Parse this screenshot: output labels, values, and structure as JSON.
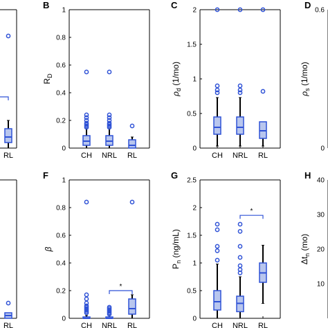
{
  "colors": {
    "box": "#2f52d6",
    "box_fill": "#b8c6ee",
    "whisker": "#000000",
    "outlier": "#2f52d6"
  },
  "chart_data": [
    {
      "type": "box",
      "panel": "A",
      "panel_label": "",
      "ylabel": "",
      "categories": [
        "",
        "RL"
      ],
      "ylim": [
        0,
        1
      ],
      "yticks": [],
      "partial": "left",
      "boxes": [
        null,
        {
          "q1": 0.04,
          "median": 0.08,
          "q3": 0.14,
          "low": 0.0,
          "high": 0.2,
          "outliers": [
            0.81
          ]
        }
      ],
      "significance": {
        "text": "",
        "from": 0,
        "to": 1,
        "y": 0.37
      }
    },
    {
      "type": "box",
      "panel": "B",
      "panel_label": "B",
      "ylabel": "R_D",
      "ylabel_main": "R",
      "ylabel_sub": "D",
      "categories": [
        "CH",
        "NRL",
        "RL"
      ],
      "ylim": [
        0,
        1
      ],
      "yticks": [
        "0",
        "0.2",
        "0.4",
        "0.6",
        "0.8",
        "1"
      ],
      "boxes": [
        {
          "q1": 0.02,
          "median": 0.05,
          "q3": 0.09,
          "low": 0.0,
          "high": 0.14,
          "outliers": [
            0.55,
            0.24,
            0.22,
            0.2,
            0.18,
            0.17,
            0.16,
            0.15
          ]
        },
        {
          "q1": 0.02,
          "median": 0.05,
          "q3": 0.09,
          "low": 0.0,
          "high": 0.14,
          "outliers": [
            0.55,
            0.24,
            0.22,
            0.2,
            0.18,
            0.17,
            0.16,
            0.15
          ]
        },
        {
          "q1": 0.0,
          "median": 0.02,
          "q3": 0.06,
          "low": 0.0,
          "high": 0.08,
          "outliers": [
            0.16
          ]
        }
      ]
    },
    {
      "type": "box",
      "panel": "C",
      "panel_label": "C",
      "ylabel": "ρ_d (1/mo)",
      "ylabel_main": "ρ",
      "ylabel_sub": "d",
      "ylabel_tail": " (1/mo)",
      "categories": [
        "CH",
        "NRL",
        "RL"
      ],
      "ylim": [
        0,
        2
      ],
      "yticks": [
        "0",
        "0.5",
        "1",
        "1.5",
        "2"
      ],
      "boxes": [
        {
          "q1": 0.2,
          "median": 0.3,
          "q3": 0.45,
          "low": 0.03,
          "high": 0.73,
          "outliers": [
            2.0,
            0.9,
            0.84,
            0.8
          ]
        },
        {
          "q1": 0.2,
          "median": 0.3,
          "q3": 0.45,
          "low": 0.03,
          "high": 0.73,
          "outliers": [
            2.0,
            0.9,
            0.84,
            0.8
          ]
        },
        {
          "q1": 0.14,
          "median": 0.25,
          "q3": 0.38,
          "low": 0.03,
          "high": 0.38,
          "outliers": [
            2.0,
            0.82
          ]
        }
      ]
    },
    {
      "type": "box",
      "panel": "D",
      "panel_label": "D",
      "ylabel": "ρ_s (1/mo)",
      "ylabel_main": "ρ",
      "ylabel_sub": "s",
      "ylabel_tail": " (1/mo)",
      "categories": [],
      "partial": "right",
      "ylim": [
        0,
        1
      ],
      "yticks": [
        "0",
        "",
        "",
        "",
        "",
        "0.6"
      ],
      "boxes": []
    },
    {
      "type": "box",
      "panel": "E",
      "panel_label": "",
      "ylabel": "",
      "categories": [
        "",
        "RL"
      ],
      "ylim": [
        0,
        1
      ],
      "yticks": [],
      "partial": "left",
      "boxes": [
        null,
        {
          "q1": 0.0,
          "median": 0.02,
          "q3": 0.04,
          "low": 0.0,
          "high": 0.04,
          "outliers": [
            0.11
          ]
        }
      ]
    },
    {
      "type": "box",
      "panel": "F",
      "panel_label": "F",
      "ylabel": "β",
      "ylabel_main": "β",
      "categories": [
        "CH",
        "NRL",
        "RL"
      ],
      "ylim": [
        0,
        1
      ],
      "yticks": [
        "0",
        "0.2",
        "0.4",
        "0.6",
        "0.8",
        "1"
      ],
      "boxes": [
        {
          "q1": 0.0,
          "median": 0.0,
          "q3": 0.01,
          "low": 0.0,
          "high": 0.02,
          "outliers": [
            0.84,
            0.17,
            0.14,
            0.11,
            0.09,
            0.08,
            0.07,
            0.06,
            0.05,
            0.04
          ]
        },
        {
          "q1": 0.0,
          "median": 0.0,
          "q3": 0.01,
          "low": 0.0,
          "high": 0.02,
          "outliers": [
            0.08,
            0.07,
            0.06,
            0.05,
            0.04,
            0.03
          ]
        },
        {
          "q1": 0.03,
          "median": 0.07,
          "q3": 0.14,
          "low": 0.0,
          "high": 0.17,
          "outliers": [
            0.84
          ]
        }
      ],
      "significance": {
        "text": "*",
        "from": 1,
        "to": 2,
        "y": 0.2
      }
    },
    {
      "type": "box",
      "panel": "G",
      "panel_label": "G",
      "ylabel": "P_n (ng/mL)",
      "ylabel_main": "P",
      "ylabel_sub": "n",
      "ylabel_tail": " (ng/mL)",
      "categories": [
        "CH",
        "NRL",
        "RL"
      ],
      "ylim": [
        0,
        2.5
      ],
      "yticks": [
        "0",
        "0.5",
        "1",
        "1.5",
        "2",
        "2.5"
      ],
      "boxes": [
        {
          "q1": 0.15,
          "median": 0.3,
          "q3": 0.5,
          "low": 0.0,
          "high": 0.98,
          "outliers": [
            1.7,
            1.6,
            1.3,
            1.22,
            1.05
          ]
        },
        {
          "q1": 0.12,
          "median": 0.27,
          "q3": 0.4,
          "low": 0.0,
          "high": 0.75,
          "outliers": [
            1.7,
            1.57,
            1.3,
            1.1,
            0.95,
            0.88,
            0.82
          ]
        },
        {
          "q1": 0.65,
          "median": 0.82,
          "q3": 1.0,
          "low": 0.27,
          "high": 1.32,
          "outliers": []
        }
      ],
      "significance": {
        "text": "*",
        "from": 1,
        "to": 2,
        "y": 1.86
      }
    },
    {
      "type": "box",
      "panel": "H",
      "panel_label": "H",
      "ylabel": "Δt_n (mo)",
      "ylabel_main": "Δt",
      "ylabel_sub": "n",
      "ylabel_tail": " (mo)",
      "categories": [],
      "partial": "right",
      "ylim": [
        0,
        45
      ],
      "yticks": [
        "",
        "10",
        "20",
        "30",
        "40"
      ],
      "boxes": []
    }
  ]
}
